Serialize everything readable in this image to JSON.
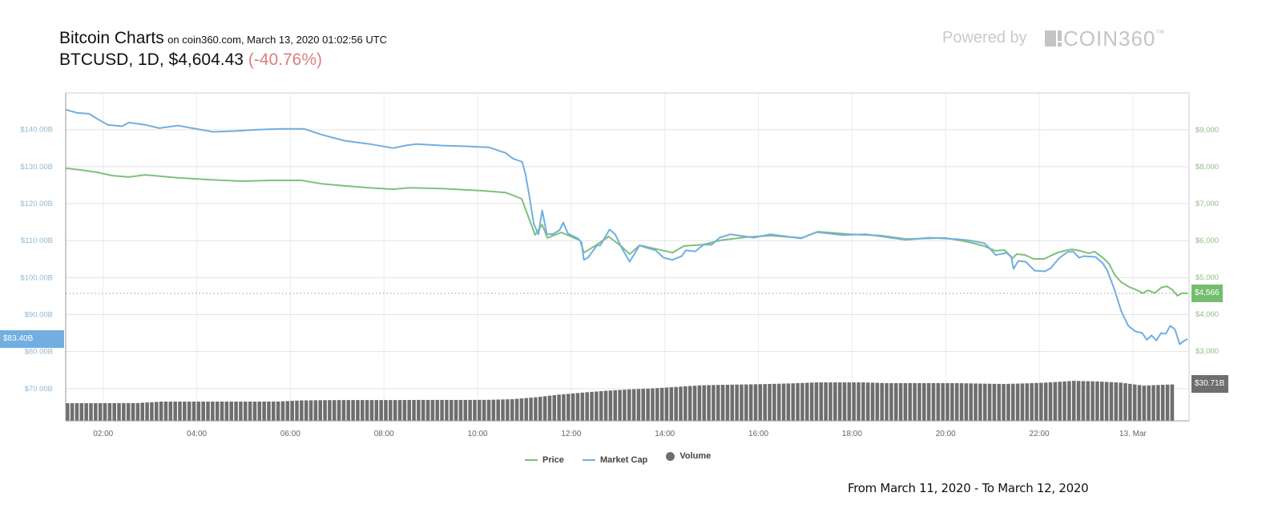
{
  "header": {
    "title": "Bitcoin Charts",
    "subtitle": "on coin360.com, March 13, 2020 01:02:56 UTC",
    "pair": "BTCUSD, 1D,",
    "price": "$4,604.43",
    "change": "(-40.76%)",
    "powered_by": "Powered by",
    "brand": "COIN360",
    "brand_tm": "™"
  },
  "footer": {
    "range": "From March 11, 2020 - To March 12, 2020"
  },
  "colors": {
    "price": "#7ec07a",
    "market_cap": "#72aee0",
    "volume": "#6e6e6e",
    "grid": "#e3e3e3"
  },
  "current": {
    "market_cap_label": "$83.40B",
    "price_label": "$4,566",
    "volume_label": "$30.71B"
  },
  "chart_data": {
    "type": "line",
    "title": "Bitcoin Charts",
    "x_unit": "hours since 00:00 March 12, 2020",
    "xlim": [
      1.2,
      25.2
    ],
    "x_ticks": [
      {
        "v": 2,
        "label": "02:00"
      },
      {
        "v": 4,
        "label": "04:00"
      },
      {
        "v": 6,
        "label": "06:00"
      },
      {
        "v": 8,
        "label": "08:00"
      },
      {
        "v": 10,
        "label": "10:00"
      },
      {
        "v": 12,
        "label": "12:00"
      },
      {
        "v": 14,
        "label": "14:00"
      },
      {
        "v": 16,
        "label": "16:00"
      },
      {
        "v": 18,
        "label": "18:00"
      },
      {
        "v": 20,
        "label": "20:00"
      },
      {
        "v": 22,
        "label": "22:00"
      },
      {
        "v": 24,
        "label": "13. Mar"
      }
    ],
    "left_axis": {
      "name": "Market Cap (USD billions)",
      "ylim": [
        61.3,
        149.9
      ],
      "ticks": [
        {
          "v": 70,
          "label": "$70.00B"
        },
        {
          "v": 80,
          "label": "$80.00B"
        },
        {
          "v": 90,
          "label": "$90.00B"
        },
        {
          "v": 100,
          "label": "$100.00B"
        },
        {
          "v": 110,
          "label": "$110.00B"
        },
        {
          "v": 120,
          "label": "$120.00B"
        },
        {
          "v": 130,
          "label": "$130.00B"
        },
        {
          "v": 140,
          "label": "$140.00B"
        }
      ]
    },
    "right_axis": {
      "name": "Price (USD)",
      "ylim": [
        1110,
        10000
      ],
      "ticks": [
        {
          "v": 3000,
          "label": "$3,000"
        },
        {
          "v": 4000,
          "label": "$4,000"
        },
        {
          "v": 5000,
          "label": "$5,000"
        },
        {
          "v": 6000,
          "label": "$6,000"
        },
        {
          "v": 7000,
          "label": "$7,000"
        },
        {
          "v": 8000,
          "label": "$8,000"
        },
        {
          "v": 9000,
          "label": "$9,000"
        }
      ]
    },
    "volume_axis": {
      "name": "Volume (USD billions)",
      "ylim": [
        0,
        273
      ]
    },
    "legend": {
      "position": "bottom-center",
      "items": [
        "Price",
        "Market Cap",
        "Volume"
      ]
    },
    "series": [
      {
        "name": "Market Cap",
        "axis": "left",
        "points": [
          [
            1.2,
            145.4
          ],
          [
            1.45,
            144.5
          ],
          [
            1.7,
            144.3
          ],
          [
            1.86,
            143.0
          ],
          [
            2.1,
            141.3
          ],
          [
            2.4,
            140.9
          ],
          [
            2.55,
            141.9
          ],
          [
            2.9,
            141.3
          ],
          [
            3.2,
            140.4
          ],
          [
            3.6,
            141.1
          ],
          [
            3.9,
            140.4
          ],
          [
            4.35,
            139.4
          ],
          [
            4.8,
            139.6
          ],
          [
            5.3,
            140.0
          ],
          [
            5.8,
            140.2
          ],
          [
            6.3,
            140.2
          ],
          [
            6.65,
            138.7
          ],
          [
            7.15,
            137.0
          ],
          [
            7.7,
            136.1
          ],
          [
            8.2,
            135.0
          ],
          [
            8.45,
            135.7
          ],
          [
            8.7,
            136.1
          ],
          [
            9.25,
            135.7
          ],
          [
            9.75,
            135.5
          ],
          [
            10.25,
            135.2
          ],
          [
            10.6,
            133.7
          ],
          [
            10.75,
            132.2
          ],
          [
            10.95,
            131.3
          ],
          [
            11.02,
            128.1
          ],
          [
            11.1,
            122.5
          ],
          [
            11.2,
            114.5
          ],
          [
            11.3,
            111.7
          ],
          [
            11.38,
            118.2
          ],
          [
            11.48,
            111.7
          ],
          [
            11.6,
            111.7
          ],
          [
            11.75,
            112.8
          ],
          [
            11.83,
            114.9
          ],
          [
            11.93,
            111.9
          ],
          [
            12.14,
            110.6
          ],
          [
            12.22,
            109.5
          ],
          [
            12.27,
            104.8
          ],
          [
            12.36,
            105.4
          ],
          [
            12.55,
            108.7
          ],
          [
            12.62,
            108.7
          ],
          [
            12.82,
            113.0
          ],
          [
            12.94,
            111.7
          ],
          [
            13.08,
            108.0
          ],
          [
            13.25,
            104.3
          ],
          [
            13.46,
            108.7
          ],
          [
            13.63,
            108.0
          ],
          [
            13.8,
            107.4
          ],
          [
            13.97,
            105.4
          ],
          [
            14.16,
            104.8
          ],
          [
            14.36,
            105.8
          ],
          [
            14.45,
            107.4
          ],
          [
            14.65,
            107.1
          ],
          [
            14.83,
            108.9
          ],
          [
            15.0,
            108.9
          ],
          [
            15.17,
            110.8
          ],
          [
            15.4,
            111.7
          ],
          [
            15.9,
            110.8
          ],
          [
            16.25,
            111.7
          ],
          [
            16.9,
            110.6
          ],
          [
            17.25,
            112.3
          ],
          [
            17.8,
            111.5
          ],
          [
            18.3,
            111.7
          ],
          [
            18.65,
            111.1
          ],
          [
            19.15,
            110.2
          ],
          [
            19.65,
            110.8
          ],
          [
            20.2,
            110.4
          ],
          [
            20.48,
            110.1
          ],
          [
            20.83,
            109.3
          ],
          [
            20.95,
            107.8
          ],
          [
            21.07,
            106.1
          ],
          [
            21.3,
            106.7
          ],
          [
            21.4,
            105.6
          ],
          [
            21.45,
            102.4
          ],
          [
            21.55,
            104.5
          ],
          [
            21.71,
            104.3
          ],
          [
            21.9,
            101.9
          ],
          [
            22.12,
            101.7
          ],
          [
            22.25,
            102.6
          ],
          [
            22.42,
            105.2
          ],
          [
            22.6,
            106.9
          ],
          [
            22.72,
            107.1
          ],
          [
            22.85,
            105.4
          ],
          [
            22.95,
            105.8
          ],
          [
            23.2,
            105.6
          ],
          [
            23.35,
            104.0
          ],
          [
            23.45,
            102.0
          ],
          [
            23.6,
            97.0
          ],
          [
            23.75,
            91.0
          ],
          [
            23.9,
            87.0
          ],
          [
            24.05,
            85.5
          ],
          [
            24.2,
            85.0
          ],
          [
            24.3,
            83.2
          ],
          [
            24.4,
            84.4
          ],
          [
            24.5,
            83.0
          ],
          [
            24.6,
            85.0
          ],
          [
            24.7,
            84.8
          ],
          [
            24.8,
            87.0
          ],
          [
            24.9,
            86.0
          ],
          [
            25.0,
            82.0
          ],
          [
            25.1,
            83.0
          ],
          [
            25.17,
            83.4
          ]
        ]
      },
      {
        "name": "Price",
        "axis": "right",
        "points": [
          [
            1.2,
            7960
          ],
          [
            1.52,
            7913
          ],
          [
            1.86,
            7850
          ],
          [
            2.2,
            7760
          ],
          [
            2.55,
            7720
          ],
          [
            2.9,
            7780
          ],
          [
            3.58,
            7700
          ],
          [
            4.26,
            7650
          ],
          [
            4.95,
            7610
          ],
          [
            5.63,
            7630
          ],
          [
            6.23,
            7630
          ],
          [
            6.66,
            7540
          ],
          [
            7.17,
            7480
          ],
          [
            7.68,
            7430
          ],
          [
            8.2,
            7390
          ],
          [
            8.54,
            7430
          ],
          [
            9.23,
            7410
          ],
          [
            10.08,
            7350
          ],
          [
            10.6,
            7300
          ],
          [
            10.94,
            7130
          ],
          [
            11.23,
            6150
          ],
          [
            11.38,
            6430
          ],
          [
            11.49,
            6070
          ],
          [
            11.79,
            6220
          ],
          [
            12.19,
            6000
          ],
          [
            12.27,
            5670
          ],
          [
            12.53,
            5870
          ],
          [
            12.8,
            6110
          ],
          [
            13.08,
            5830
          ],
          [
            13.25,
            5630
          ],
          [
            13.46,
            5870
          ],
          [
            14.16,
            5670
          ],
          [
            14.41,
            5850
          ],
          [
            14.83,
            5890
          ],
          [
            15.17,
            6000
          ],
          [
            15.73,
            6090
          ],
          [
            16.25,
            6130
          ],
          [
            16.93,
            6070
          ],
          [
            17.27,
            6240
          ],
          [
            17.96,
            6170
          ],
          [
            18.64,
            6130
          ],
          [
            19.15,
            6040
          ],
          [
            20.0,
            6070
          ],
          [
            20.48,
            5960
          ],
          [
            20.82,
            5850
          ],
          [
            21.06,
            5720
          ],
          [
            21.26,
            5740
          ],
          [
            21.43,
            5520
          ],
          [
            21.52,
            5630
          ],
          [
            21.69,
            5610
          ],
          [
            21.88,
            5500
          ],
          [
            22.1,
            5500
          ],
          [
            22.39,
            5670
          ],
          [
            22.6,
            5740
          ],
          [
            22.7,
            5760
          ],
          [
            22.87,
            5720
          ],
          [
            23.06,
            5650
          ],
          [
            23.18,
            5700
          ],
          [
            23.37,
            5520
          ],
          [
            23.49,
            5370
          ],
          [
            23.61,
            5070
          ],
          [
            23.75,
            4870
          ],
          [
            23.92,
            4740
          ],
          [
            24.09,
            4650
          ],
          [
            24.21,
            4570
          ],
          [
            24.33,
            4650
          ],
          [
            24.47,
            4570
          ],
          [
            24.6,
            4720
          ],
          [
            24.72,
            4760
          ],
          [
            24.84,
            4670
          ],
          [
            24.95,
            4500
          ],
          [
            25.05,
            4570
          ],
          [
            25.17,
            4566
          ]
        ]
      },
      {
        "name": "Volume",
        "axis": "volume",
        "type": "bar",
        "start": 1.2,
        "step": 0.5,
        "values": [
          14.7,
          14.7,
          14.7,
          14.8,
          16.0,
          16.0,
          16.0,
          16.0,
          16.0,
          16.1,
          17.0,
          17.2,
          17.3,
          17.3,
          17.3,
          17.4,
          17.4,
          17.4,
          17.5,
          18.0,
          19.6,
          21.8,
          23.5,
          25.0,
          26.2,
          27.0,
          28.2,
          29.5,
          30.0,
          30.3,
          30.7,
          31.2,
          32.0,
          32.0,
          32.0,
          31.4,
          31.4,
          31.4,
          31.4,
          31.0,
          30.7,
          31.2,
          32.0,
          33.3,
          32.8,
          31.8,
          29.3,
          30.2,
          30.71
        ]
      }
    ],
    "current_lines": {
      "price": 4566,
      "market_cap": 83.4,
      "volume": 30.71
    }
  }
}
